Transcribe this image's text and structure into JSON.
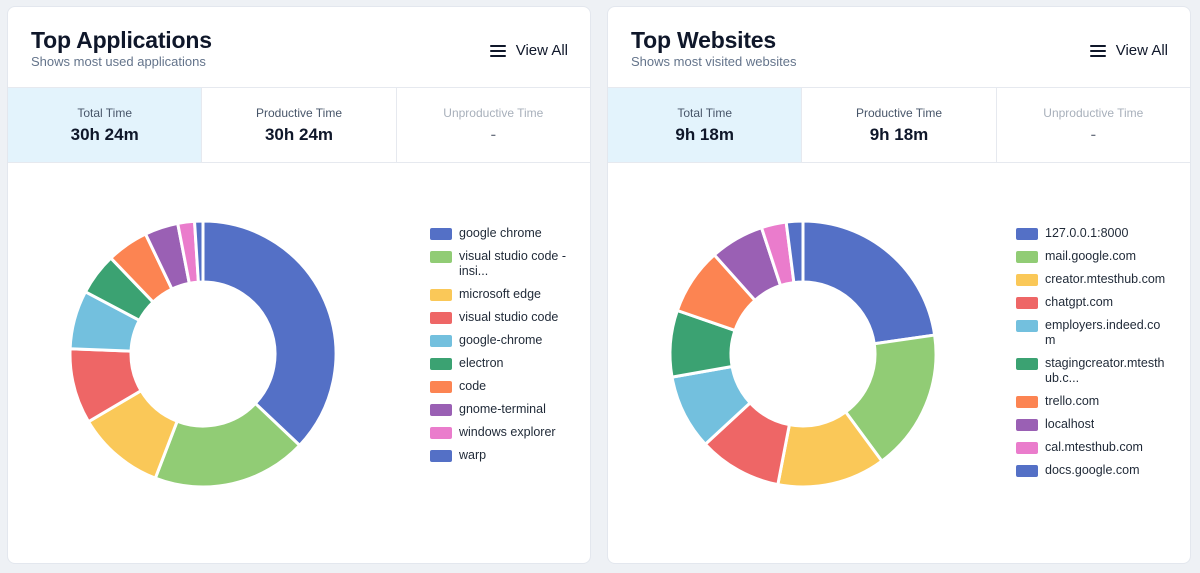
{
  "cards": [
    {
      "title": "Top Applications",
      "subtitle": "Shows most used applications",
      "view_all": "View All",
      "stats": [
        {
          "label": "Total Time",
          "value": "30h 24m"
        },
        {
          "label": "Productive Time",
          "value": "30h 24m"
        },
        {
          "label": "Unproductive Time",
          "value": "-"
        }
      ],
      "chart_data": {
        "type": "pie",
        "labels": [
          "google chrome",
          "visual studio code - insi...",
          "microsoft edge",
          "visual studio code",
          "google-chrome",
          "electron",
          "code",
          "gnome-terminal",
          "windows explorer",
          "warp"
        ],
        "values": [
          36.5,
          18.5,
          10.5,
          9.0,
          7.0,
          5.0,
          5.0,
          4.0,
          2.0,
          1.0
        ],
        "colors": [
          "#5470c6",
          "#91cc75",
          "#fac858",
          "#ee6666",
          "#73c0de",
          "#3ba272",
          "#fc8452",
          "#9a60b4",
          "#ea7ccc",
          "#5470c6"
        ]
      }
    },
    {
      "title": "Top Websites",
      "subtitle": "Shows most visited websites",
      "view_all": "View All",
      "stats": [
        {
          "label": "Total Time",
          "value": "9h 18m"
        },
        {
          "label": "Productive Time",
          "value": "9h 18m"
        },
        {
          "label": "Unproductive Time",
          "value": "-"
        }
      ],
      "chart_data": {
        "type": "pie",
        "labels": [
          "127.0.0.1:8000",
          "mail.google.com",
          "creator.mtesthub.com",
          "chatgpt.com",
          "employers.indeed.com",
          "stagingcreator.mtesthub.c...",
          "trello.com",
          "localhost",
          "cal.mtesthub.com",
          "docs.google.com"
        ],
        "values": [
          22.5,
          17.0,
          13.0,
          10.0,
          9.0,
          8.0,
          8.0,
          6.5,
          3.0,
          2.0
        ],
        "colors": [
          "#5470c6",
          "#91cc75",
          "#fac858",
          "#ee6666",
          "#73c0de",
          "#3ba272",
          "#fc8452",
          "#9a60b4",
          "#ea7ccc",
          "#5470c6"
        ]
      }
    }
  ]
}
